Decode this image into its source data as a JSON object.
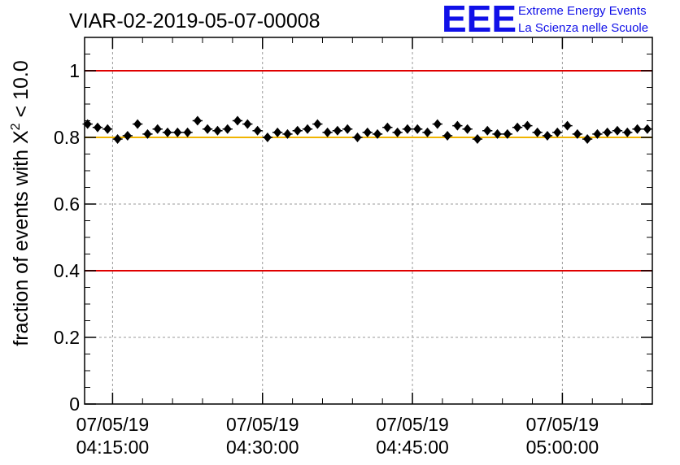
{
  "title": "VIAR-02-2019-05-07-00008",
  "logo": {
    "mark": "EEE",
    "line1": "Extreme Energy Events",
    "line2": "La Scienza nelle Scuole",
    "color": "#1010e8"
  },
  "chart_data": {
    "type": "scatter",
    "title": "VIAR-02-2019-05-07-00008",
    "ylabel_prefix": "fraction of events with",
    "ylabel_symbol": "X",
    "ylabel_sup": "2",
    "ylabel_suffix": "< 10.0",
    "ylim": [
      0,
      1.1
    ],
    "yticks": [
      0,
      0.2,
      0.4,
      0.6,
      0.8,
      1
    ],
    "ytick_labels": [
      "0",
      "0.2",
      "0.4",
      "0.6",
      "0.8",
      "1"
    ],
    "xlim_minutes": [
      252.2,
      309.0
    ],
    "xticks": [
      {
        "minute": 255,
        "date": "07/05/19",
        "time": "04:15:00"
      },
      {
        "minute": 270,
        "date": "07/05/19",
        "time": "04:30:00"
      },
      {
        "minute": 285,
        "date": "07/05/19",
        "time": "04:45:00"
      },
      {
        "minute": 300,
        "date": "07/05/19",
        "time": "05:00:00"
      }
    ],
    "grid": true,
    "reference_lines": [
      {
        "y": 1.0,
        "color": "#e00000"
      },
      {
        "y": 0.4,
        "color": "#e00000"
      },
      {
        "y": 0.8,
        "color": "#f0b400"
      }
    ],
    "series": [
      {
        "name": "fraction",
        "color": "#000000",
        "x_start_minute": 252.5,
        "x_step_minutes": 1.0,
        "y_error": 0.009,
        "values": [
          0.84,
          0.83,
          0.825,
          0.795,
          0.805,
          0.84,
          0.81,
          0.825,
          0.815,
          0.815,
          0.815,
          0.85,
          0.825,
          0.82,
          0.825,
          0.85,
          0.84,
          0.82,
          0.8,
          0.815,
          0.81,
          0.82,
          0.825,
          0.84,
          0.815,
          0.82,
          0.825,
          0.8,
          0.815,
          0.81,
          0.83,
          0.815,
          0.825,
          0.825,
          0.815,
          0.84,
          0.805,
          0.835,
          0.825,
          0.795,
          0.82,
          0.81,
          0.81,
          0.83,
          0.835,
          0.815,
          0.805,
          0.815,
          0.835,
          0.81,
          0.795,
          0.81,
          0.815,
          0.82,
          0.815,
          0.825,
          0.825
        ]
      }
    ]
  }
}
